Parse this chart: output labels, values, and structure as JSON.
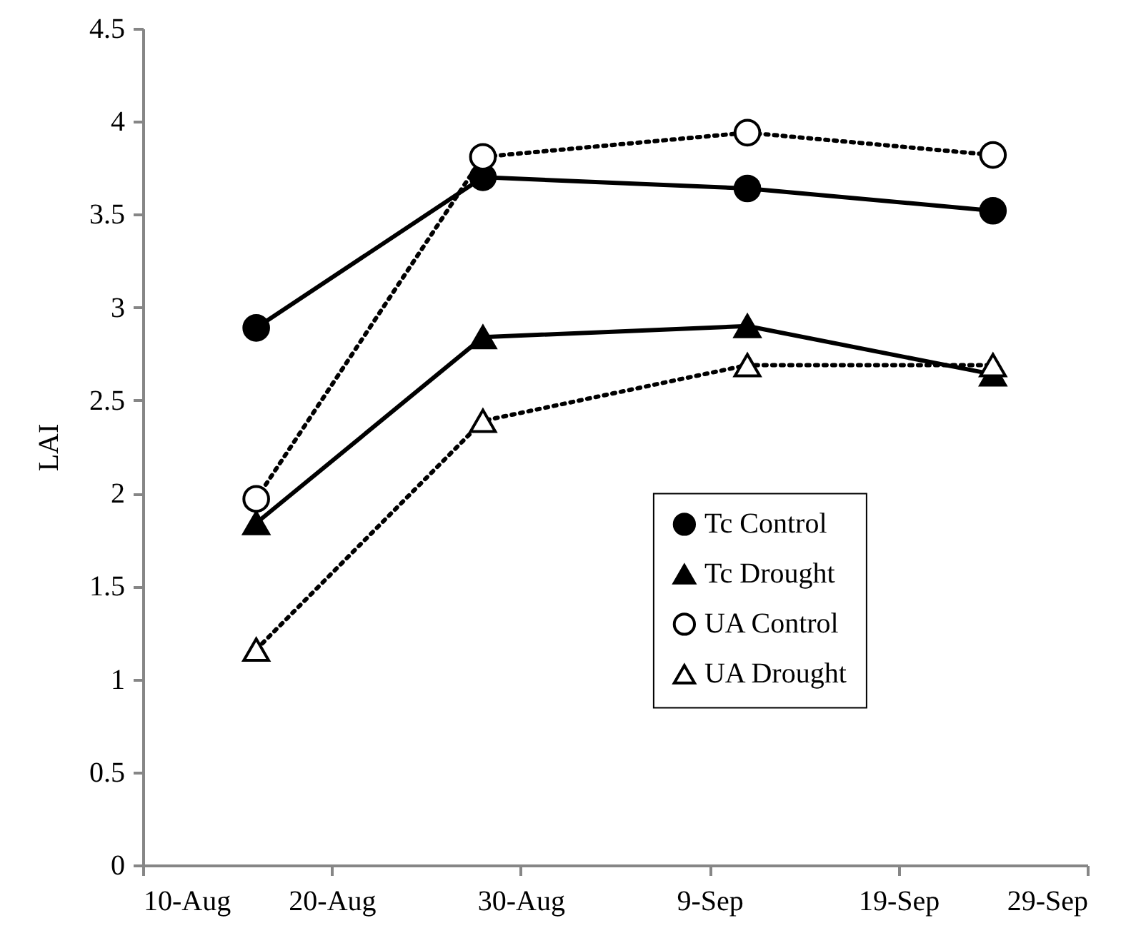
{
  "chart_data": {
    "type": "line",
    "ylabel": "LAI",
    "x": [
      "--08-16",
      "--08-28",
      "--09-11",
      "--09-24"
    ],
    "series": [
      {
        "name": "Tc Control",
        "color": "#000000",
        "marker": "circle",
        "line_style": "solid",
        "values": [
          2.89,
          3.7,
          3.64,
          3.52
        ]
      },
      {
        "name": "Tc Drought",
        "color": "#000000",
        "marker": "triangle",
        "line_style": "solid",
        "values": [
          1.84,
          2.84,
          2.9,
          2.64
        ]
      },
      {
        "name": "UA Control",
        "color": "#000000",
        "marker": "circle",
        "line_style": "dotted",
        "values": [
          1.97,
          3.81,
          3.94,
          3.82
        ]
      },
      {
        "name": "UA Drought",
        "color": "#000000",
        "marker": "triangle",
        "line_style": "dotted",
        "values": [
          1.16,
          2.39,
          2.69,
          2.69
        ]
      }
    ],
    "xlim": [
      "--08-10",
      "--09-29"
    ],
    "xticks": [
      {
        "value": "--08-10",
        "label": "10-Aug"
      },
      {
        "value": "--08-20",
        "label": "20-Aug"
      },
      {
        "value": "--08-30",
        "label": "30-Aug"
      },
      {
        "value": "--09-09",
        "label": "9-Sep"
      },
      {
        "value": "--09-19",
        "label": "19-Sep"
      },
      {
        "value": "--09-29",
        "label": "29-Sep"
      }
    ],
    "ylim": [
      0,
      4.5
    ],
    "yticks": [
      0,
      0.5,
      1,
      1.5,
      2,
      2.5,
      3,
      3.5,
      4,
      4.5
    ],
    "grid": false,
    "legend": "right"
  }
}
